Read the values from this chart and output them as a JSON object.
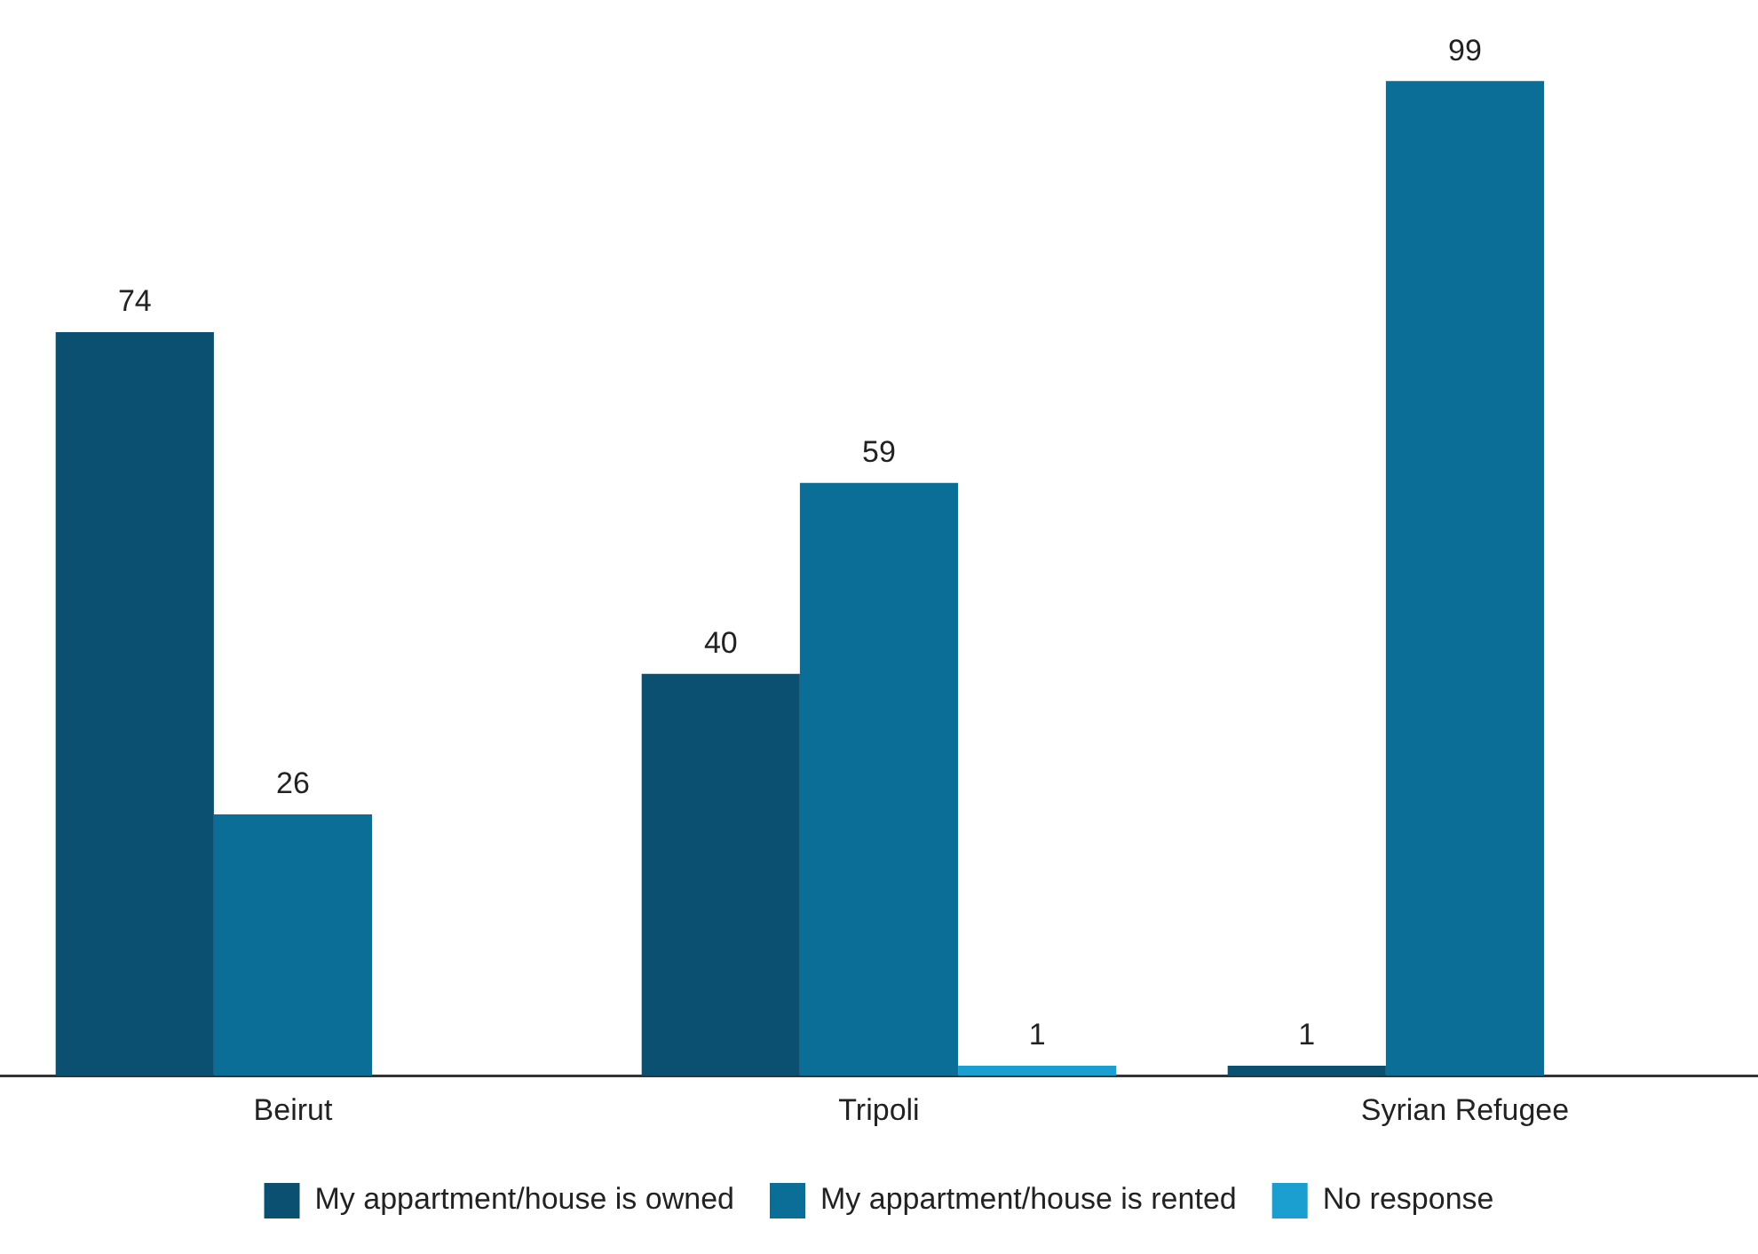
{
  "chart_data": {
    "type": "bar",
    "categories": [
      "Beirut",
      "Tripoli",
      "Syrian Refugee"
    ],
    "series": [
      {
        "name": "My appartment/house is owned",
        "color": "#0b4f71",
        "values": [
          74,
          40,
          1
        ]
      },
      {
        "name": "My appartment/house is rented",
        "color": "#0b6e96",
        "values": [
          26,
          59,
          99
        ]
      },
      {
        "name": "No response",
        "color": "#1a9fd0",
        "values": [
          null,
          1,
          null
        ]
      }
    ],
    "data_labels": true,
    "grid": false,
    "legend": "bottom"
  }
}
